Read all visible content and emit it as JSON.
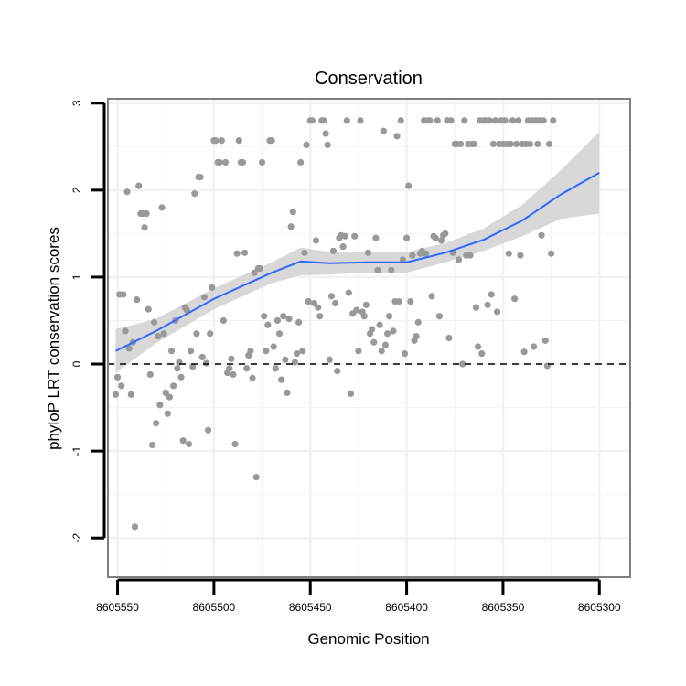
{
  "chart_data": {
    "type": "scatter",
    "title": "Conservation",
    "xlabel": "Genomic Position",
    "ylabel": "phyloP LRT conservation scores",
    "x_reversed": true,
    "xlim": [
      8605555,
      8605284
    ],
    "ylim": [
      -2.45,
      3.05
    ],
    "xticks": [
      8605550,
      8605500,
      8605450,
      8605400,
      8605350,
      8605300
    ],
    "xtick_labels": [
      "8605550",
      "8605500",
      "8605450",
      "8605400",
      "8605350",
      "8605300"
    ],
    "yticks": [
      -2,
      -1,
      0,
      1,
      2,
      3
    ],
    "ytick_labels": [
      "-2",
      "-1",
      "0",
      "1",
      "2",
      "3"
    ],
    "grid": true,
    "reference_line": {
      "y": 0,
      "style": "dashed"
    },
    "colors": {
      "points": "#999999",
      "smooth": "#3366ff",
      "ribbon": "#d4d4d4",
      "grid": "#f2f2f2",
      "border": "#7f7f7f"
    },
    "series": [
      {
        "name": "observations",
        "points": [
          [
            8605551,
            -0.35
          ],
          [
            8605550,
            -0.15
          ],
          [
            8605549,
            0.8
          ],
          [
            8605548,
            -0.25
          ],
          [
            8605547,
            0.8
          ],
          [
            8605546,
            0.38
          ],
          [
            8605545,
            1.98
          ],
          [
            8605544,
            0.18
          ],
          [
            8605543,
            -0.35
          ],
          [
            8605542,
            0.25
          ],
          [
            8605541,
            -1.87
          ],
          [
            8605540,
            0.74
          ],
          [
            8605539,
            2.05
          ],
          [
            8605538,
            1.73
          ],
          [
            8605537,
            1.73
          ],
          [
            8605536,
            1.57
          ],
          [
            8605535,
            1.73
          ],
          [
            8605534,
            0.63
          ],
          [
            8605533,
            -0.12
          ],
          [
            8605532,
            -0.93
          ],
          [
            8605531,
            0.48
          ],
          [
            8605530,
            -0.68
          ],
          [
            8605529,
            0.32
          ],
          [
            8605528,
            -0.47
          ],
          [
            8605527,
            1.8
          ],
          [
            8605526,
            0.35
          ],
          [
            8605525,
            -0.33
          ],
          [
            8605524,
            -0.57
          ],
          [
            8605523,
            -0.38
          ],
          [
            8605522,
            0.15
          ],
          [
            8605521,
            -0.25
          ],
          [
            8605520,
            0.5
          ],
          [
            8605519,
            -0.05
          ],
          [
            8605518,
            0.02
          ],
          [
            8605517,
            -0.15
          ],
          [
            8605516,
            -0.88
          ],
          [
            8605515,
            0.65
          ],
          [
            8605514,
            0.62
          ],
          [
            8605513,
            -0.92
          ],
          [
            8605512,
            0.15
          ],
          [
            8605511,
            -0.03
          ],
          [
            8605510,
            1.96
          ],
          [
            8605509,
            0.35
          ],
          [
            8605508,
            2.15
          ],
          [
            8605507,
            2.15
          ],
          [
            8605506,
            0.08
          ],
          [
            8605505,
            0.77
          ],
          [
            8605504,
            0.01
          ],
          [
            8605503,
            -0.76
          ],
          [
            8605502,
            0.35
          ],
          [
            8605501,
            0.88
          ],
          [
            8605500,
            2.57
          ],
          [
            8605499,
            2.57
          ],
          [
            8605498,
            2.32
          ],
          [
            8605497,
            2.32
          ],
          [
            8605496,
            2.57
          ],
          [
            8605495,
            0.5
          ],
          [
            8605494,
            2.32
          ],
          [
            8605493,
            -0.1
          ],
          [
            8605492,
            -0.05
          ],
          [
            8605491,
            0.06
          ],
          [
            8605490,
            -0.12
          ],
          [
            8605489,
            -0.92
          ],
          [
            8605488,
            1.27
          ],
          [
            8605487,
            2.57
          ],
          [
            8605486,
            2.32
          ],
          [
            8605485,
            2.32
          ],
          [
            8605484,
            1.28
          ],
          [
            8605483,
            -0.05
          ],
          [
            8605482,
            0.1
          ],
          [
            8605481,
            0.15
          ],
          [
            8605480,
            -0.16
          ],
          [
            8605479,
            1.05
          ],
          [
            8605478,
            -1.3
          ],
          [
            8605477,
            1.1
          ],
          [
            8605476,
            1.1
          ],
          [
            8605475,
            2.32
          ],
          [
            8605474,
            0.55
          ],
          [
            8605473,
            0.15
          ],
          [
            8605472,
            0.45
          ],
          [
            8605471,
            2.57
          ],
          [
            8605470,
            2.57
          ],
          [
            8605469,
            0.2
          ],
          [
            8605468,
            -0.05
          ],
          [
            8605467,
            0.5
          ],
          [
            8605466,
            0.35
          ],
          [
            8605465,
            -0.18
          ],
          [
            8605464,
            0.55
          ],
          [
            8605463,
            0.05
          ],
          [
            8605462,
            -0.33
          ],
          [
            8605461,
            0.52
          ],
          [
            8605460,
            1.58
          ],
          [
            8605459,
            1.75
          ],
          [
            8605458,
            0.02
          ],
          [
            8605457,
            0.12
          ],
          [
            8605456,
            0.48
          ],
          [
            8605455,
            2.32
          ],
          [
            8605454,
            0.15
          ],
          [
            8605453,
            1.28
          ],
          [
            8605452,
            2.52
          ],
          [
            8605451,
            0.72
          ],
          [
            8605450,
            2.8
          ],
          [
            8605449,
            2.8
          ],
          [
            8605448,
            0.7
          ],
          [
            8605447,
            1.42
          ],
          [
            8605446,
            0.65
          ],
          [
            8605445,
            0.55
          ],
          [
            8605444,
            2.8
          ],
          [
            8605443,
            2.8
          ],
          [
            8605442,
            2.65
          ],
          [
            8605441,
            2.52
          ],
          [
            8605440,
            0.05
          ],
          [
            8605439,
            0.78
          ],
          [
            8605438,
            1.3
          ],
          [
            8605437,
            0.7
          ],
          [
            8605436,
            -0.08
          ],
          [
            8605435,
            1.45
          ],
          [
            8605434,
            1.48
          ],
          [
            8605433,
            1.35
          ],
          [
            8605432,
            1.47
          ],
          [
            8605431,
            2.8
          ],
          [
            8605430,
            0.82
          ],
          [
            8605429,
            -0.34
          ],
          [
            8605428,
            0.58
          ],
          [
            8605427,
            1.47
          ],
          [
            8605426,
            0.62
          ],
          [
            8605425,
            0.15
          ],
          [
            8605424,
            2.8
          ],
          [
            8605423,
            0.6
          ],
          [
            8605422,
            0.55
          ],
          [
            8605421,
            0.68
          ],
          [
            8605420,
            1.28
          ],
          [
            8605419,
            0.35
          ],
          [
            8605418,
            0.4
          ],
          [
            8605417,
            0.25
          ],
          [
            8605416,
            1.45
          ],
          [
            8605415,
            1.08
          ],
          [
            8605414,
            0.45
          ],
          [
            8605413,
            0.15
          ],
          [
            8605412,
            2.68
          ],
          [
            8605411,
            0.22
          ],
          [
            8605410,
            0.35
          ],
          [
            8605409,
            0.55
          ],
          [
            8605408,
            1.08
          ],
          [
            8605407,
            0.38
          ],
          [
            8605406,
            0.72
          ],
          [
            8605405,
            2.62
          ],
          [
            8605404,
            0.72
          ],
          [
            8605403,
            2.8
          ],
          [
            8605402,
            1.2
          ],
          [
            8605401,
            0.12
          ],
          [
            8605400,
            1.45
          ],
          [
            8605399,
            2.05
          ],
          [
            8605398,
            0.72
          ],
          [
            8605397,
            1.25
          ],
          [
            8605396,
            0.27
          ],
          [
            8605395,
            0.32
          ],
          [
            8605394,
            0.48
          ],
          [
            8605393,
            1.27
          ],
          [
            8605392,
            1.3
          ],
          [
            8605391,
            2.8
          ],
          [
            8605390,
            1.27
          ],
          [
            8605389,
            2.8
          ],
          [
            8605388,
            2.8
          ],
          [
            8605387,
            0.78
          ],
          [
            8605386,
            1.47
          ],
          [
            8605385,
            1.45
          ],
          [
            8605384,
            2.8
          ],
          [
            8605383,
            0.55
          ],
          [
            8605382,
            1.42
          ],
          [
            8605381,
            1.48
          ],
          [
            8605380,
            1.5
          ],
          [
            8605379,
            2.8
          ],
          [
            8605378,
            0.3
          ],
          [
            8605377,
            2.8
          ],
          [
            8605376,
            1.28
          ],
          [
            8605375,
            2.53
          ],
          [
            8605374,
            2.53
          ],
          [
            8605373,
            1.2
          ],
          [
            8605372,
            2.53
          ],
          [
            8605371,
            0.0
          ],
          [
            8605370,
            2.8
          ],
          [
            8605369,
            1.25
          ],
          [
            8605368,
            2.53
          ],
          [
            8605367,
            1.25
          ],
          [
            8605366,
            2.53
          ],
          [
            8605365,
            2.53
          ],
          [
            8605364,
            0.65
          ],
          [
            8605363,
            0.2
          ],
          [
            8605362,
            2.8
          ],
          [
            8605361,
            0.12
          ],
          [
            8605360,
            2.8
          ],
          [
            8605359,
            2.8
          ],
          [
            8605358,
            0.68
          ],
          [
            8605357,
            2.8
          ],
          [
            8605356,
            0.8
          ],
          [
            8605355,
            2.53
          ],
          [
            8605354,
            2.8
          ],
          [
            8605353,
            0.6
          ],
          [
            8605352,
            2.53
          ],
          [
            8605351,
            2.8
          ],
          [
            8605350,
            2.53
          ],
          [
            8605349,
            2.8
          ],
          [
            8605348,
            2.53
          ],
          [
            8605347,
            1.27
          ],
          [
            8605346,
            2.53
          ],
          [
            8605345,
            2.8
          ],
          [
            8605344,
            0.75
          ],
          [
            8605343,
            2.53
          ],
          [
            8605342,
            2.8
          ],
          [
            8605341,
            1.25
          ],
          [
            8605340,
            2.53
          ],
          [
            8605339,
            0.14
          ],
          [
            8605338,
            2.53
          ],
          [
            8605337,
            2.8
          ],
          [
            8605336,
            2.53
          ],
          [
            8605335,
            2.8
          ],
          [
            8605334,
            0.2
          ],
          [
            8605333,
            2.8
          ],
          [
            8605332,
            2.53
          ],
          [
            8605331,
            2.8
          ],
          [
            8605330,
            1.48
          ],
          [
            8605329,
            2.8
          ],
          [
            8605328,
            0.27
          ],
          [
            8605327,
            -0.02
          ],
          [
            8605326,
            2.53
          ],
          [
            8605325,
            1.27
          ],
          [
            8605324,
            2.8
          ]
        ]
      },
      {
        "name": "loess smooth",
        "fit": [
          [
            8605551,
            0.15
          ],
          [
            8605530,
            0.38
          ],
          [
            8605500,
            0.75
          ],
          [
            8605470,
            1.05
          ],
          [
            8605455,
            1.18
          ],
          [
            8605440,
            1.16
          ],
          [
            8605420,
            1.17
          ],
          [
            8605400,
            1.17
          ],
          [
            8605380,
            1.28
          ],
          [
            8605360,
            1.43
          ],
          [
            8605340,
            1.65
          ],
          [
            8605320,
            1.95
          ],
          [
            8605300,
            2.2
          ]
        ],
        "ci_lower": [
          [
            8605551,
            -0.1
          ],
          [
            8605530,
            0.24
          ],
          [
            8605500,
            0.63
          ],
          [
            8605470,
            0.93
          ],
          [
            8605455,
            1.02
          ],
          [
            8605440,
            1.03
          ],
          [
            8605420,
            1.05
          ],
          [
            8605400,
            1.05
          ],
          [
            8605380,
            1.17
          ],
          [
            8605360,
            1.3
          ],
          [
            8605340,
            1.47
          ],
          [
            8605320,
            1.67
          ],
          [
            8605300,
            1.73
          ]
        ],
        "ci_upper": [
          [
            8605551,
            0.4
          ],
          [
            8605530,
            0.52
          ],
          [
            8605500,
            0.87
          ],
          [
            8605470,
            1.17
          ],
          [
            8605455,
            1.34
          ],
          [
            8605440,
            1.29
          ],
          [
            8605420,
            1.29
          ],
          [
            8605400,
            1.29
          ],
          [
            8605380,
            1.39
          ],
          [
            8605360,
            1.56
          ],
          [
            8605340,
            1.83
          ],
          [
            8605320,
            2.23
          ],
          [
            8605300,
            2.67
          ]
        ]
      }
    ]
  }
}
